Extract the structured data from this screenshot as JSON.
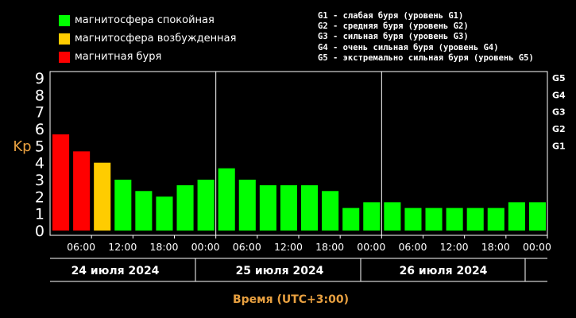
{
  "legend": [
    {
      "label": "магнитосфера спокойная",
      "color": "#00ff00"
    },
    {
      "label": "магнитосфера возбужденная",
      "color": "#ffcc00"
    },
    {
      "label": "магнитная буря",
      "color": "#ff0000"
    }
  ],
  "storm_levels": [
    "G1 - слабая буря (уровень G1)",
    "G2 - средняя буря (уровень G2)",
    "G3 - сильная буря (уровень G3)",
    "G4 - очень сильная буря (уровень G4)",
    "G5 - экстремально сильная буря (уровень G5)"
  ],
  "chart_data": {
    "type": "bar",
    "ylabel": "Kp",
    "xlabel": "Время (UTC+3:00)",
    "ylim": [
      0,
      9
    ],
    "yticks": [
      "0",
      "1",
      "2",
      "3",
      "4",
      "5",
      "6",
      "7",
      "8",
      "9"
    ],
    "right_axis_ticks": [
      {
        "label": "G1",
        "value": 5
      },
      {
        "label": "G2",
        "value": 6
      },
      {
        "label": "G3",
        "value": 7
      },
      {
        "label": "G4",
        "value": 8
      },
      {
        "label": "G5",
        "value": 9
      }
    ],
    "xticks": [
      "06:00",
      "12:00",
      "18:00",
      "00:00",
      "06:00",
      "12:00",
      "18:00",
      "00:00",
      "06:00",
      "12:00",
      "18:00",
      "00:00"
    ],
    "days": [
      "24 июля 2024",
      "25 июля 2024",
      "26 июля 2024"
    ],
    "values": [
      5.67,
      4.67,
      4.0,
      3.0,
      2.33,
      2.0,
      2.67,
      3.0,
      3.67,
      3.0,
      2.67,
      2.67,
      2.67,
      2.33,
      1.33,
      1.67,
      1.67,
      1.33,
      1.33,
      1.33,
      1.33,
      1.33,
      1.67,
      1.67
    ],
    "colors": {
      "quiet": "#00ff00",
      "active": "#ffcc00",
      "storm": "#ff0000",
      "label_accent": "#e8a040"
    }
  }
}
